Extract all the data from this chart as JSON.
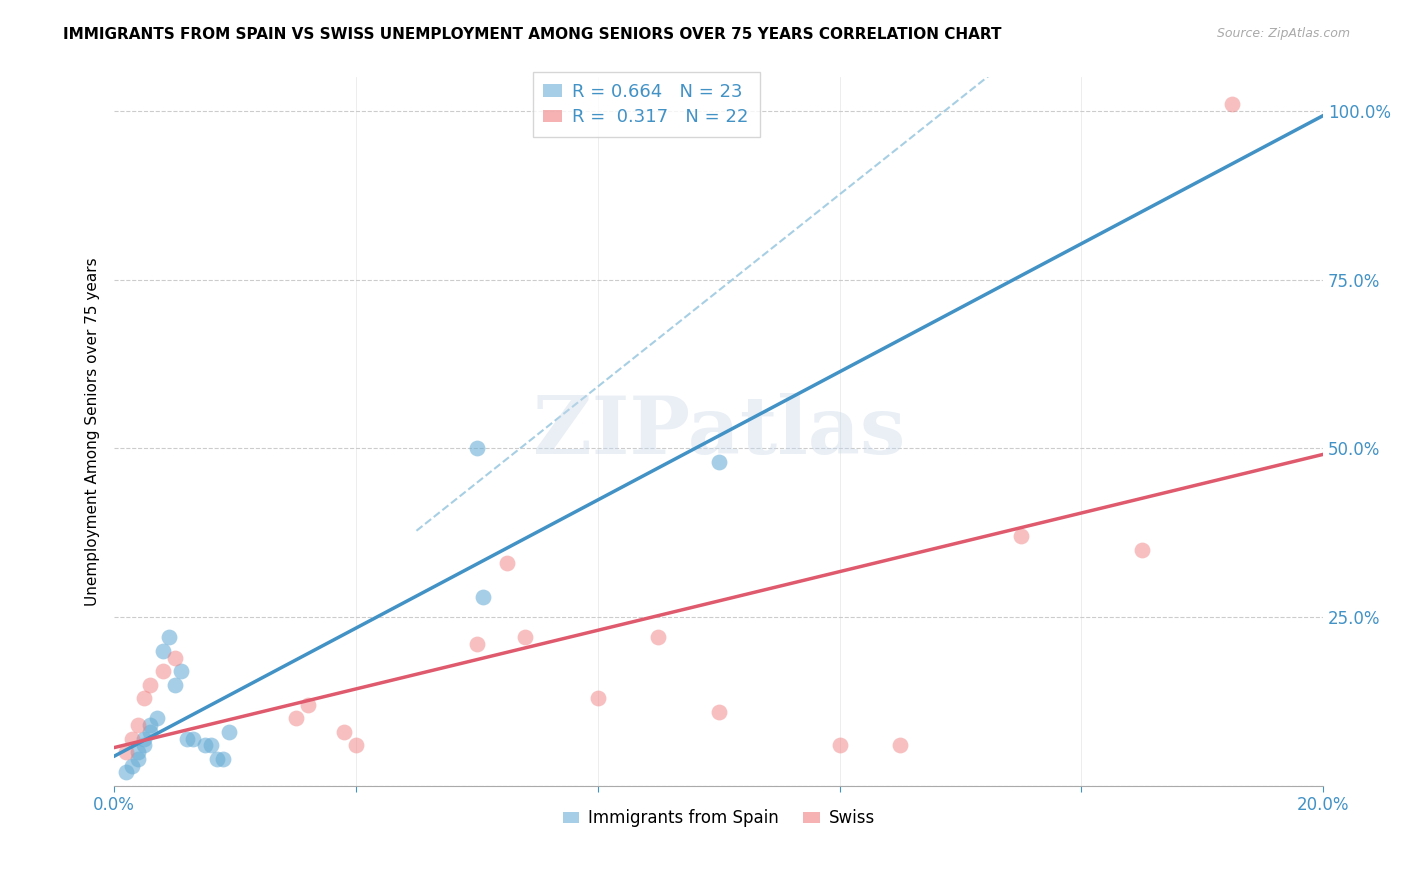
{
  "title": "IMMIGRANTS FROM SPAIN VS SWISS UNEMPLOYMENT AMONG SENIORS OVER 75 YEARS CORRELATION CHART",
  "source": "Source: ZipAtlas.com",
  "ylabel": "Unemployment Among Seniors over 75 years",
  "xlim": [
    0.0,
    0.2
  ],
  "ylim": [
    0.0,
    1.05
  ],
  "xticks": [
    0.0,
    0.04,
    0.08,
    0.12,
    0.16,
    0.2
  ],
  "xticklabels": [
    "0.0%",
    "",
    "",
    "",
    "",
    "20.0%"
  ],
  "ytick_positions": [
    0.0,
    0.25,
    0.5,
    0.75,
    1.0
  ],
  "yticklabels": [
    "",
    "25.0%",
    "50.0%",
    "75.0%",
    "100.0%"
  ],
  "R_blue": 0.664,
  "N_blue": 23,
  "R_pink": 0.317,
  "N_pink": 22,
  "blue_color": "#6baed6",
  "pink_color": "#f08080",
  "blue_line_color": "#4292c6",
  "pink_line_color": "#e05a6e",
  "dashed_line_color": "#9ecae1",
  "watermark": "ZIPatlas",
  "blue_x": [
    0.002,
    0.003,
    0.004,
    0.004,
    0.005,
    0.005,
    0.006,
    0.006,
    0.007,
    0.008,
    0.009,
    0.01,
    0.011,
    0.012,
    0.013,
    0.015,
    0.016,
    0.017,
    0.018,
    0.019,
    0.06,
    0.061,
    0.1
  ],
  "blue_y": [
    0.02,
    0.03,
    0.04,
    0.05,
    0.06,
    0.07,
    0.08,
    0.09,
    0.1,
    0.2,
    0.22,
    0.15,
    0.17,
    0.07,
    0.07,
    0.06,
    0.06,
    0.04,
    0.04,
    0.08,
    0.5,
    0.28,
    0.48
  ],
  "pink_x": [
    0.002,
    0.003,
    0.004,
    0.005,
    0.006,
    0.008,
    0.01,
    0.03,
    0.032,
    0.038,
    0.04,
    0.06,
    0.065,
    0.068,
    0.08,
    0.09,
    0.1,
    0.12,
    0.13,
    0.15,
    0.17,
    0.185
  ],
  "pink_y": [
    0.05,
    0.07,
    0.09,
    0.13,
    0.15,
    0.17,
    0.19,
    0.1,
    0.12,
    0.08,
    0.06,
    0.21,
    0.33,
    0.22,
    0.13,
    0.22,
    0.11,
    0.06,
    0.06,
    0.37,
    0.35,
    1.01
  ]
}
